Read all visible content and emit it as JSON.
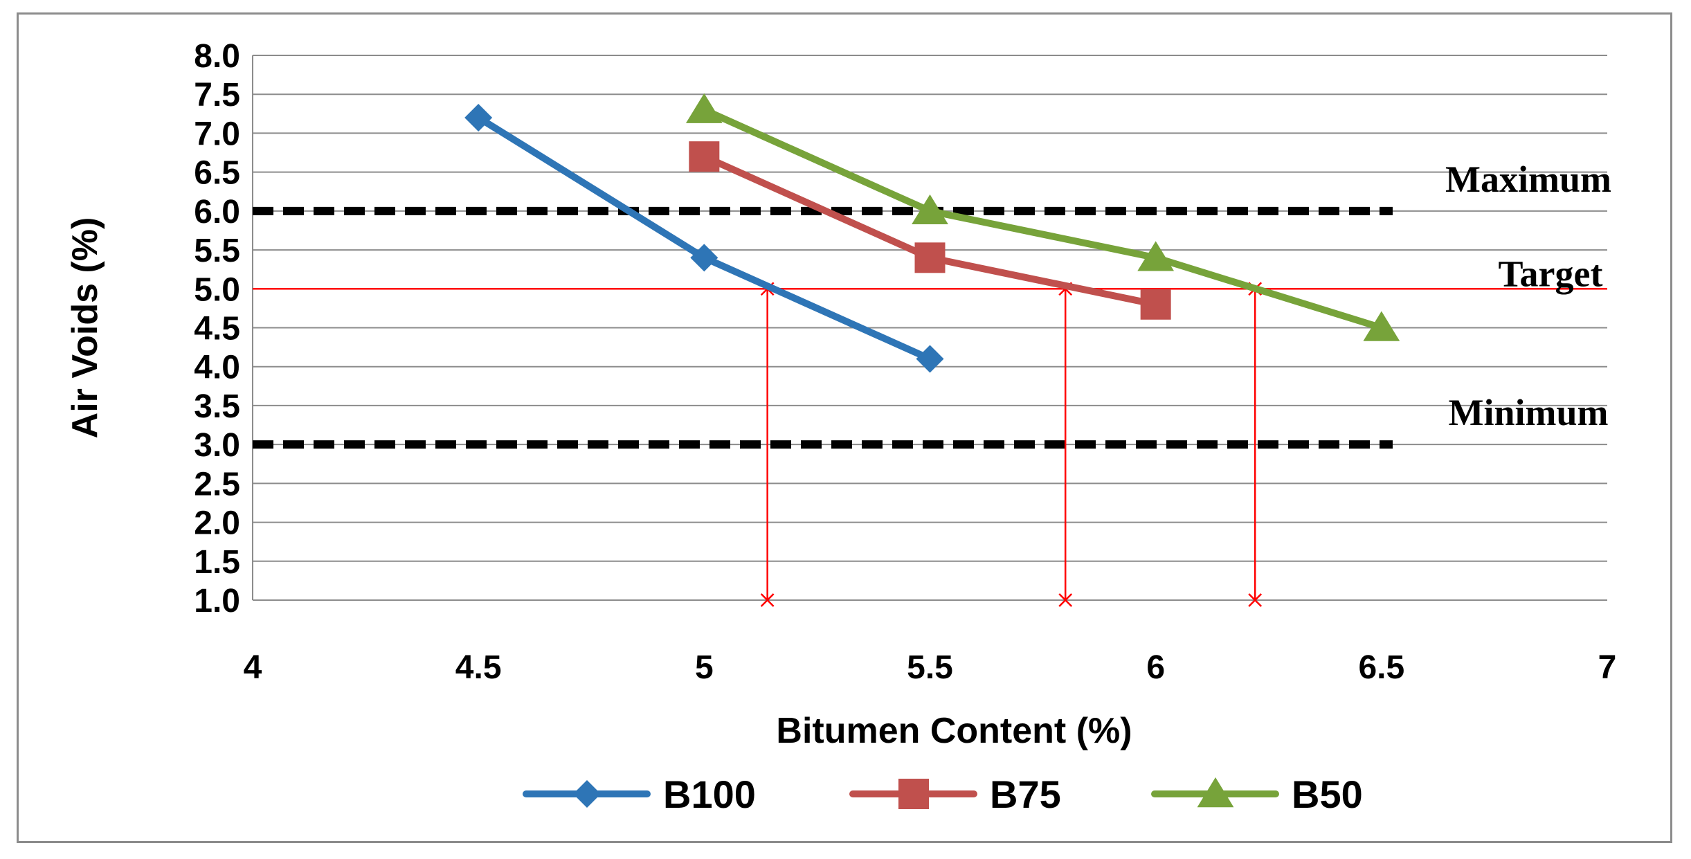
{
  "chart_data": {
    "type": "line",
    "xlabel": "Bitumen Content (%)",
    "ylabel": "Air Voids (%)",
    "xlim": [
      4,
      7
    ],
    "ylim": [
      1.0,
      8.0
    ],
    "x_ticks": [
      "4",
      "4.5",
      "5",
      "5.5",
      "6",
      "6.5",
      "7"
    ],
    "y_ticks": [
      "1.0",
      "1.5",
      "2.0",
      "2.5",
      "3.0",
      "3.5",
      "4.0",
      "4.5",
      "5.0",
      "5.5",
      "6.0",
      "6.5",
      "7.0",
      "7.5",
      "8.0"
    ],
    "grid": "horizontal",
    "legend_position": "bottom",
    "series": [
      {
        "name": "B100",
        "color": "#2e75b6",
        "marker": "diamond",
        "x": [
          4.5,
          5.0,
          5.5
        ],
        "y": [
          7.2,
          5.4,
          4.1
        ]
      },
      {
        "name": "B75",
        "color": "#c0504d",
        "marker": "square",
        "x": [
          5.0,
          5.5,
          6.0
        ],
        "y": [
          6.7,
          5.4,
          4.8
        ]
      },
      {
        "name": "B50",
        "color": "#77a33a",
        "marker": "triangle",
        "x": [
          5.0,
          5.5,
          6.0,
          6.5
        ],
        "y": [
          7.3,
          6.0,
          5.4,
          4.5
        ]
      }
    ],
    "reference_lines": [
      {
        "label": "Maximum",
        "y": 6.0,
        "style": "dashed",
        "color": "#000000"
      },
      {
        "label": "Target",
        "y": 5.0,
        "style": "solid",
        "color": "#ff0000"
      },
      {
        "label": "Minimum",
        "y": 3.0,
        "style": "dashed",
        "color": "#000000"
      }
    ],
    "target_drops": [
      {
        "x": 5.14,
        "y": 5.0
      },
      {
        "x": 5.8,
        "y": 5.0
      },
      {
        "x": 6.22,
        "y": 5.0
      }
    ]
  }
}
